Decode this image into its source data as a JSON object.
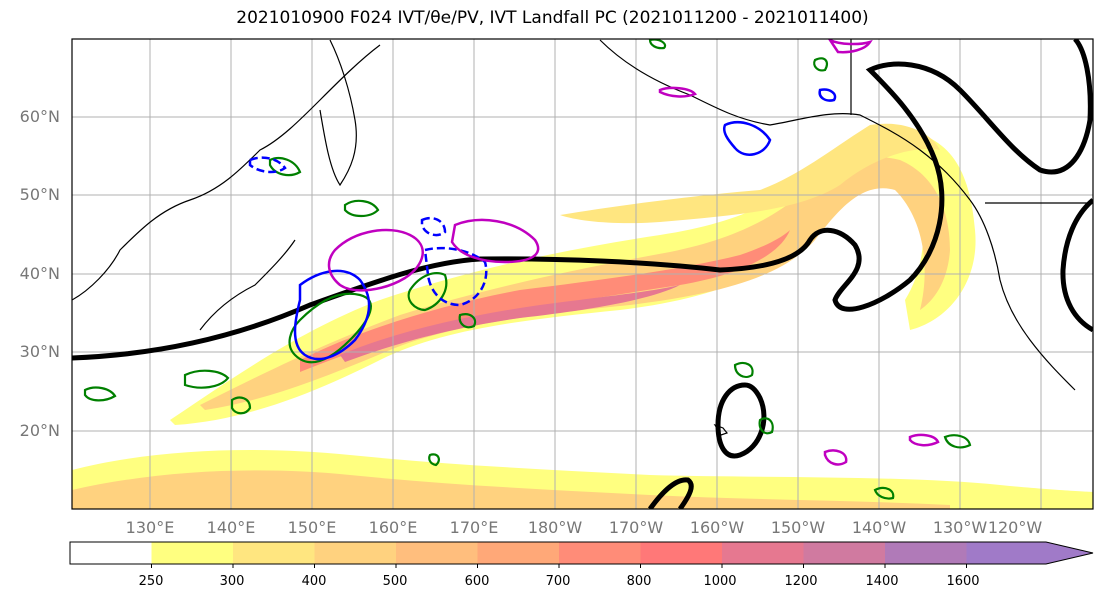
{
  "title": "2021010900 F024 IVT/θe/PV, IVT Landfall PC (2021011200 - 2021011400)",
  "map": {
    "lat_labels": [
      "60°N",
      "50°N",
      "40°N",
      "30°N",
      "20°N"
    ],
    "lon_labels": [
      "130°E",
      "140°E",
      "150°E",
      "160°E",
      "170°E",
      "180°W",
      "170°W",
      "160°W",
      "150°W",
      "140°W",
      "130°W",
      "120°W"
    ]
  },
  "colorbar": {
    "levels": [
      "250",
      "300",
      "400",
      "500",
      "600",
      "700",
      "800",
      "1000",
      "1200",
      "1400",
      "1600"
    ],
    "colors": [
      "#ffffff",
      "#ffff80",
      "#ffe680",
      "#ffd27f",
      "#ffbe7d",
      "#ffa878",
      "#ff8c78",
      "#ff7878",
      "#e67890",
      "#d07aa0",
      "#b07ab8",
      "#a07ac8"
    ]
  },
  "legend_colors": {
    "coast": "#000000",
    "contour_thick": "#000000",
    "pv_green": "#008000",
    "theta_blue": "#0000ff",
    "magenta": "#c000c0"
  }
}
